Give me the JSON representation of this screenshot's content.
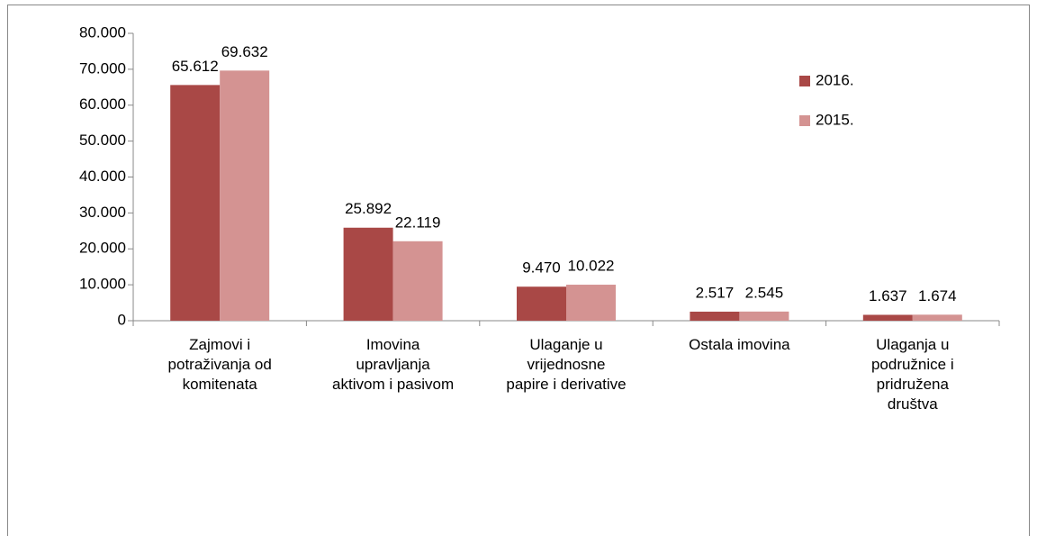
{
  "chart_data": {
    "type": "bar",
    "categories": [
      "Zajmovi i\npotraživanja od\nkomitenata",
      "Imovina\nupravljanja\naktivom i pasivom",
      "Ulaganje u\nvrijednosne\npapire i derivative",
      "Ostala imovina",
      "Ulaganja u\npodružnice i\npridružena\ndruštva"
    ],
    "series": [
      {
        "name": "2016.",
        "color": "#a94846",
        "values": [
          65612,
          25892,
          9470,
          2517,
          1637
        ],
        "value_labels": [
          "65.612",
          "25.892",
          "9.470",
          "2.517",
          "1.637"
        ]
      },
      {
        "name": "2015.",
        "color": "#d49392",
        "values": [
          69632,
          22119,
          10022,
          2545,
          1674
        ],
        "value_labels": [
          "69.632",
          "22.119",
          "10.022",
          "2.545",
          "1.674"
        ]
      }
    ],
    "ylim": [
      0,
      80000
    ],
    "yticks": [
      0,
      {
        "value": 10000,
        "label": "10.000"
      },
      {
        "value": 20000,
        "label": "20.000"
      },
      {
        "value": 30000,
        "label": "30.000"
      },
      {
        "value": 40000,
        "label": "40.000"
      },
      {
        "value": 50000,
        "label": "50.000"
      },
      {
        "value": 60000,
        "label": "60.000"
      },
      {
        "value": 70000,
        "label": "70.000"
      },
      {
        "value": 80000,
        "label": "80.000"
      }
    ],
    "legend": "right"
  }
}
